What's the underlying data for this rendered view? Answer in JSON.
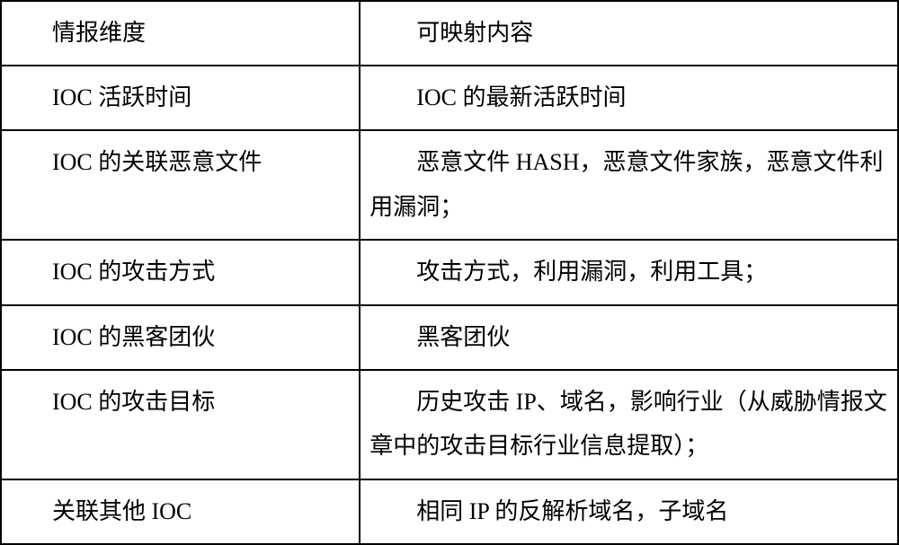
{
  "table": {
    "columns": [
      "情报维度",
      "可映射内容"
    ],
    "rows": [
      [
        "IOC 活跃时间",
        "IOC 的最新活跃时间"
      ],
      [
        "IOC 的关联恶意文件",
        "恶意文件 HASH，恶意文件家族，恶意文件利用漏洞；"
      ],
      [
        "IOC 的攻击方式",
        "攻击方式，利用漏洞，利用工具；"
      ],
      [
        "IOC 的黑客团伙",
        "黑客团伙"
      ],
      [
        "IOC 的攻击目标",
        "历史攻击 IP、域名，影响行业（从威胁情报文章中的攻击目标行业信息提取）；"
      ],
      [
        "关联其他 IOC",
        "相同 IP 的反解析域名，子域名"
      ]
    ],
    "border_color": "#000000",
    "background_color": "#ffffff",
    "font_size": 26,
    "text_color": "#000000",
    "left_col_width_pct": 40,
    "right_col_width_pct": 60
  }
}
